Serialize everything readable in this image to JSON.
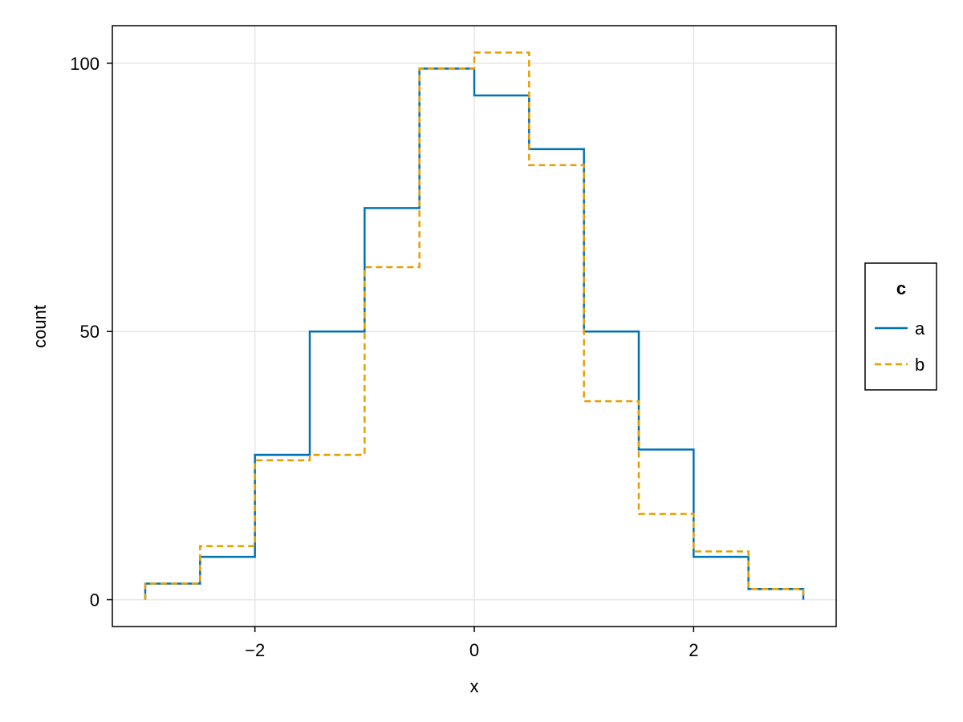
{
  "chart_data": {
    "type": "line",
    "subtype": "step-histogram",
    "title": "",
    "xlabel": "x",
    "ylabel": "count",
    "xlim": [
      -3.3,
      3.3
    ],
    "ylim": [
      -5,
      107
    ],
    "xticks": [
      -2,
      0,
      2
    ],
    "xtick_labels": [
      "−2",
      "0",
      "2"
    ],
    "yticks": [
      0,
      50,
      100
    ],
    "ytick_labels": [
      "0",
      "50",
      "100"
    ],
    "grid": true,
    "bin_edges": [
      -3,
      -2.5,
      -2,
      -1.5,
      -1,
      -0.5,
      0,
      0.5,
      1,
      1.5,
      2,
      2.5,
      3
    ],
    "series": [
      {
        "name": "a",
        "color": "#0072b2",
        "dash": "solid",
        "values": [
          3,
          8,
          27,
          50,
          73,
          99,
          94,
          84,
          50,
          28,
          8,
          2
        ]
      },
      {
        "name": "b",
        "color": "#e69f00",
        "dash": "dashed",
        "values": [
          3,
          10,
          26,
          27,
          62,
          99,
          102,
          81,
          37,
          16,
          9,
          2
        ]
      }
    ],
    "legend": {
      "title": "c",
      "position": "right"
    }
  }
}
